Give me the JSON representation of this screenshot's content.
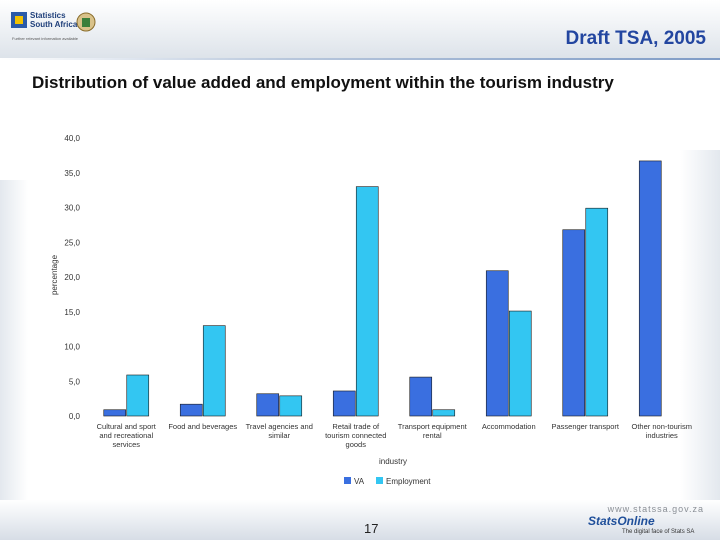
{
  "header": {
    "deck_title": "Draft TSA, 2005",
    "logo_text_line1": "Statistics",
    "logo_text_line2": "South Africa",
    "logo_tagline": "Further relevant information available"
  },
  "slide": {
    "heading": "Distribution of value added and employment within the tourism industry"
  },
  "chart_data": {
    "type": "bar",
    "title": "",
    "xlabel": "industry",
    "ylabel": "percentage",
    "ylim": [
      0,
      40
    ],
    "yticks": [
      "0,0",
      "5,0",
      "10,0",
      "15,0",
      "20,0",
      "25,0",
      "30,0",
      "35,0",
      "40,0"
    ],
    "categories": [
      [
        "Cultural and sport",
        "and recreational",
        "services"
      ],
      [
        "Food and beverages"
      ],
      [
        "Travel agencies and",
        "similar"
      ],
      [
        "Retail trade of",
        "tourism connected",
        "goods"
      ],
      [
        "Transport equipment",
        "rental"
      ],
      [
        "Accommodation"
      ],
      [
        "Passenger transport"
      ],
      [
        "Other non-tourism",
        "industries"
      ]
    ],
    "series": [
      {
        "name": "VA",
        "color": "#3a6fe0",
        "values": [
          0.9,
          1.7,
          3.2,
          3.6,
          5.6,
          20.9,
          26.8,
          36.7
        ]
      },
      {
        "name": "Employment",
        "color": "#33c6f2",
        "values": [
          5.9,
          13.0,
          2.9,
          33.0,
          0.9,
          15.1,
          29.9,
          0
        ]
      }
    ],
    "legend": "bottom-center",
    "grid": false
  },
  "footer": {
    "page_number": "17",
    "site_url": "www.statssa.gov.za",
    "brand": "StatsOnline",
    "brand_tagline": "The digital face of Stats SA"
  }
}
